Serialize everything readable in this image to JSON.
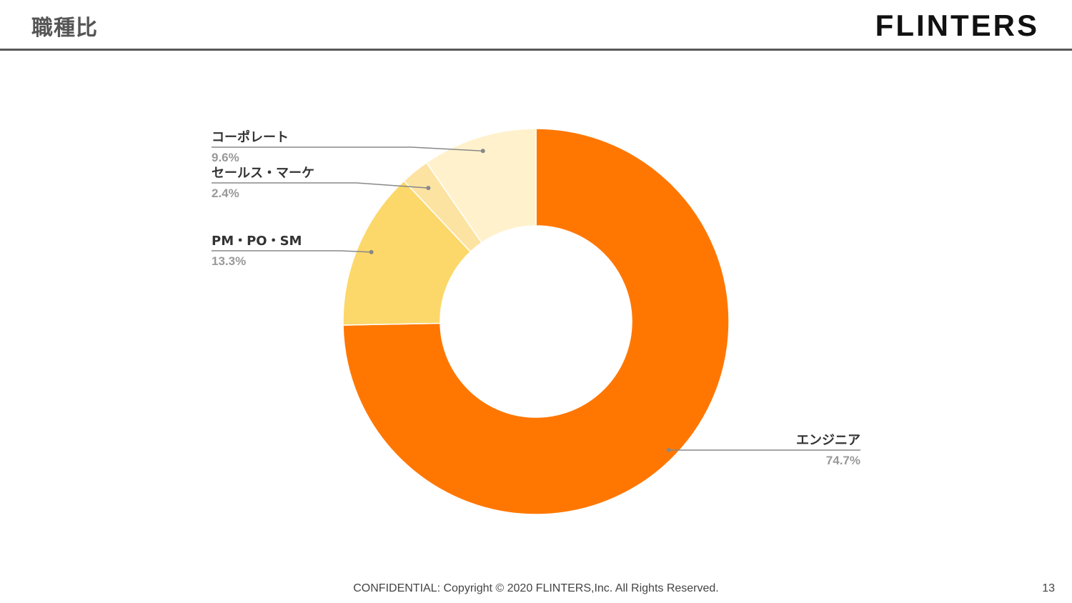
{
  "slide": {
    "title": "職種比",
    "brand": "FLINTERS",
    "footer": "CONFIDENTIAL: Copyright © 2020 FLINTERS,Inc. All Rights Reserved.",
    "page_number": "13"
  },
  "chart_data": {
    "type": "pie",
    "donut": true,
    "start_angle_deg": 0,
    "direction": "clockwise",
    "slices": [
      {
        "label": "エンジニア",
        "value": 74.7,
        "percent_label": "74.7%",
        "color": "#FF7700"
      },
      {
        "label": "PM・PO・SM",
        "value": 13.3,
        "percent_label": "13.3%",
        "color": "#FCD86A"
      },
      {
        "label": "セールス・マーケ",
        "value": 2.4,
        "percent_label": "2.4%",
        "color": "#FDE3A2"
      },
      {
        "label": "コーポレート",
        "value": 9.6,
        "percent_label": "9.6%",
        "color": "#FFF1CC"
      }
    ],
    "label_color": "#333333",
    "percent_color": "#999999",
    "leader_color": "#888888"
  }
}
